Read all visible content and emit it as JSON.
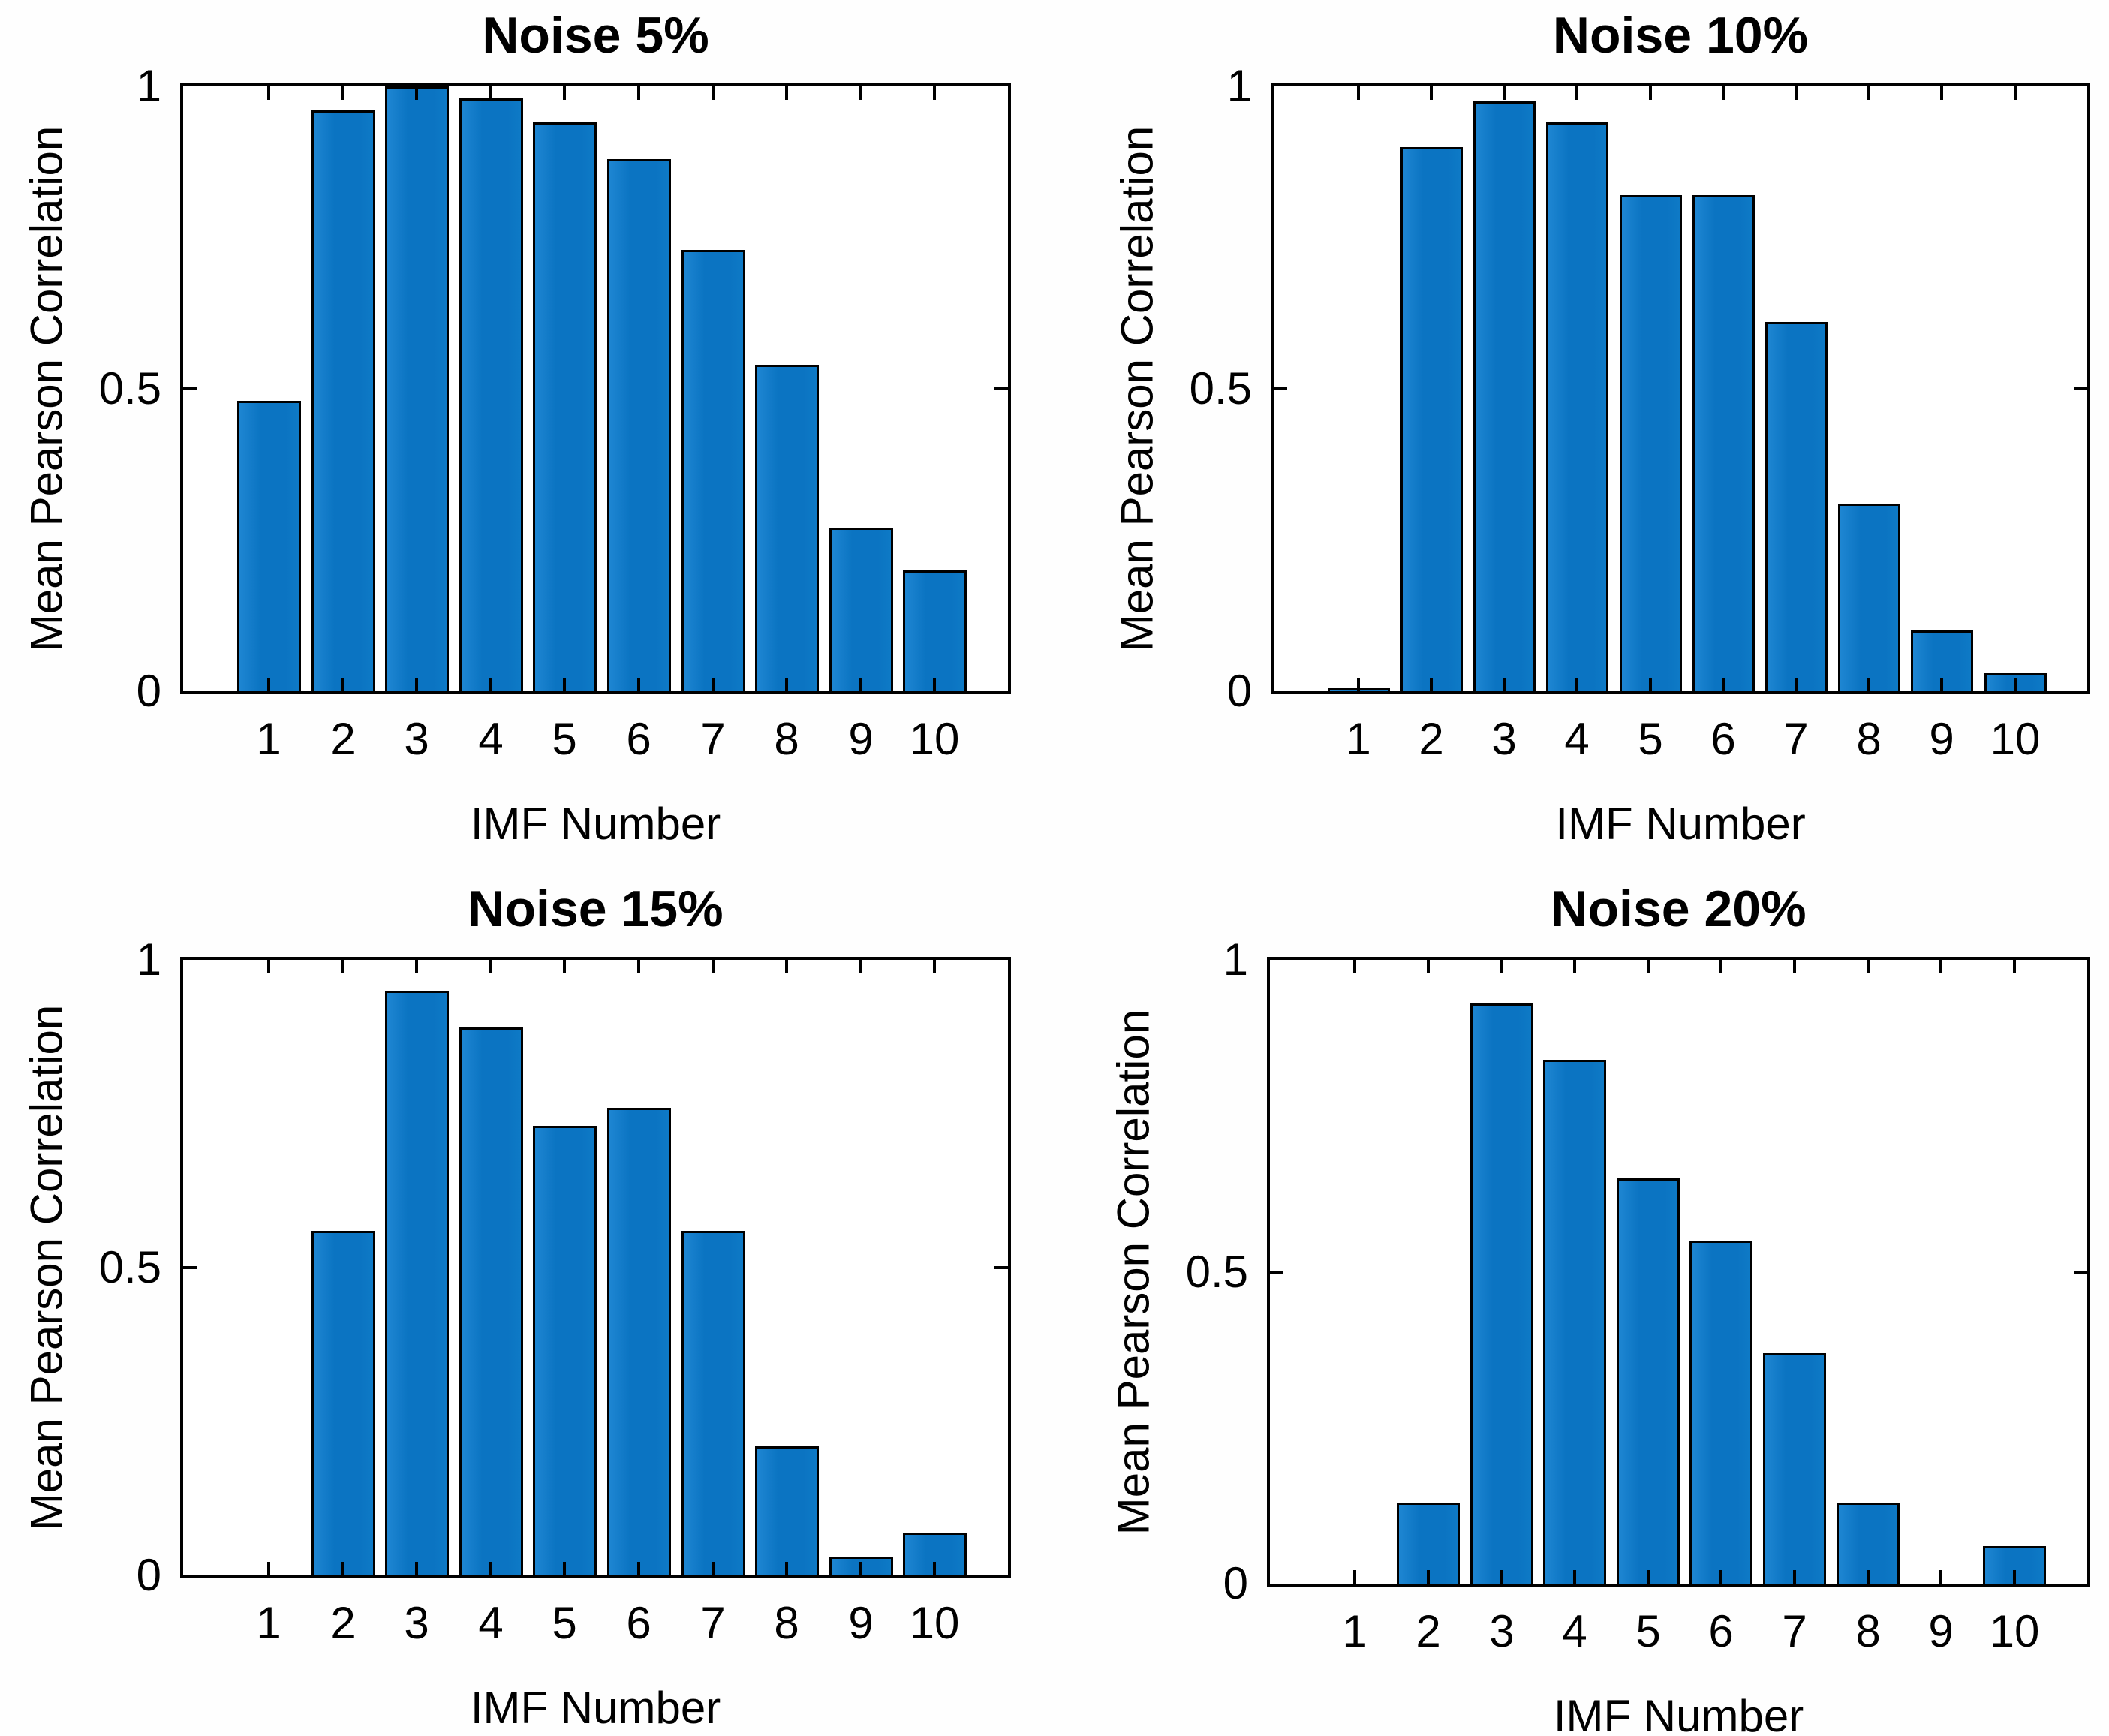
{
  "colors": {
    "bar_fill": "#0e78c4",
    "bar_edge": "#000000",
    "axis": "#000000",
    "background": "#ffffff",
    "text": "#000000"
  },
  "chart_data": [
    {
      "type": "bar",
      "title": "Noise 5%",
      "xlabel": "IMF Number",
      "ylabel": "Mean Pearson Correlation",
      "categories": [
        "1",
        "2",
        "3",
        "4",
        "5",
        "6",
        "7",
        "8",
        "9",
        "10"
      ],
      "values": [
        0.48,
        0.96,
        1.0,
        0.98,
        0.94,
        0.88,
        0.73,
        0.54,
        0.27,
        0.2
      ],
      "ylim": [
        0,
        1
      ],
      "yticks": [
        0,
        0.5,
        1
      ],
      "ytick_labels": [
        "0",
        "0.5",
        "1"
      ],
      "grid": false,
      "legend": null
    },
    {
      "type": "bar",
      "title": "Noise 10%",
      "xlabel": "IMF Number",
      "ylabel": "Mean Pearson Correlation",
      "categories": [
        "1",
        "2",
        "3",
        "4",
        "5",
        "6",
        "7",
        "8",
        "9",
        "10"
      ],
      "values": [
        0.005,
        0.9,
        0.975,
        0.94,
        0.82,
        0.82,
        0.61,
        0.31,
        0.1,
        0.03
      ],
      "ylim": [
        0,
        1
      ],
      "yticks": [
        0,
        0.5,
        1
      ],
      "ytick_labels": [
        "0",
        "0.5",
        "1"
      ],
      "grid": false,
      "legend": null
    },
    {
      "type": "bar",
      "title": "Noise 15%",
      "xlabel": "IMF Number",
      "ylabel": "Mean Pearson Correlation",
      "categories": [
        "1",
        "2",
        "3",
        "4",
        "5",
        "6",
        "7",
        "8",
        "9",
        "10"
      ],
      "values": [
        0,
        0.56,
        0.95,
        0.89,
        0.73,
        0.76,
        0.56,
        0.21,
        0.03,
        0.07
      ],
      "ylim": [
        0,
        1
      ],
      "yticks": [
        0,
        0.5,
        1
      ],
      "ytick_labels": [
        "0",
        "0.5",
        "1"
      ],
      "grid": false,
      "legend": null
    },
    {
      "type": "bar",
      "title": "Noise 20%",
      "xlabel": "IMF Number",
      "ylabel": "Mean Pearson Correlation",
      "categories": [
        "1",
        "2",
        "3",
        "4",
        "5",
        "6",
        "7",
        "8",
        "9",
        "10"
      ],
      "values": [
        0,
        0.13,
        0.93,
        0.84,
        0.65,
        0.55,
        0.37,
        0.13,
        0,
        0.06
      ],
      "ylim": [
        0,
        1
      ],
      "yticks": [
        0,
        0.5,
        1
      ],
      "ytick_labels": [
        "0",
        "0.5",
        "1"
      ],
      "grid": false,
      "legend": null
    }
  ]
}
